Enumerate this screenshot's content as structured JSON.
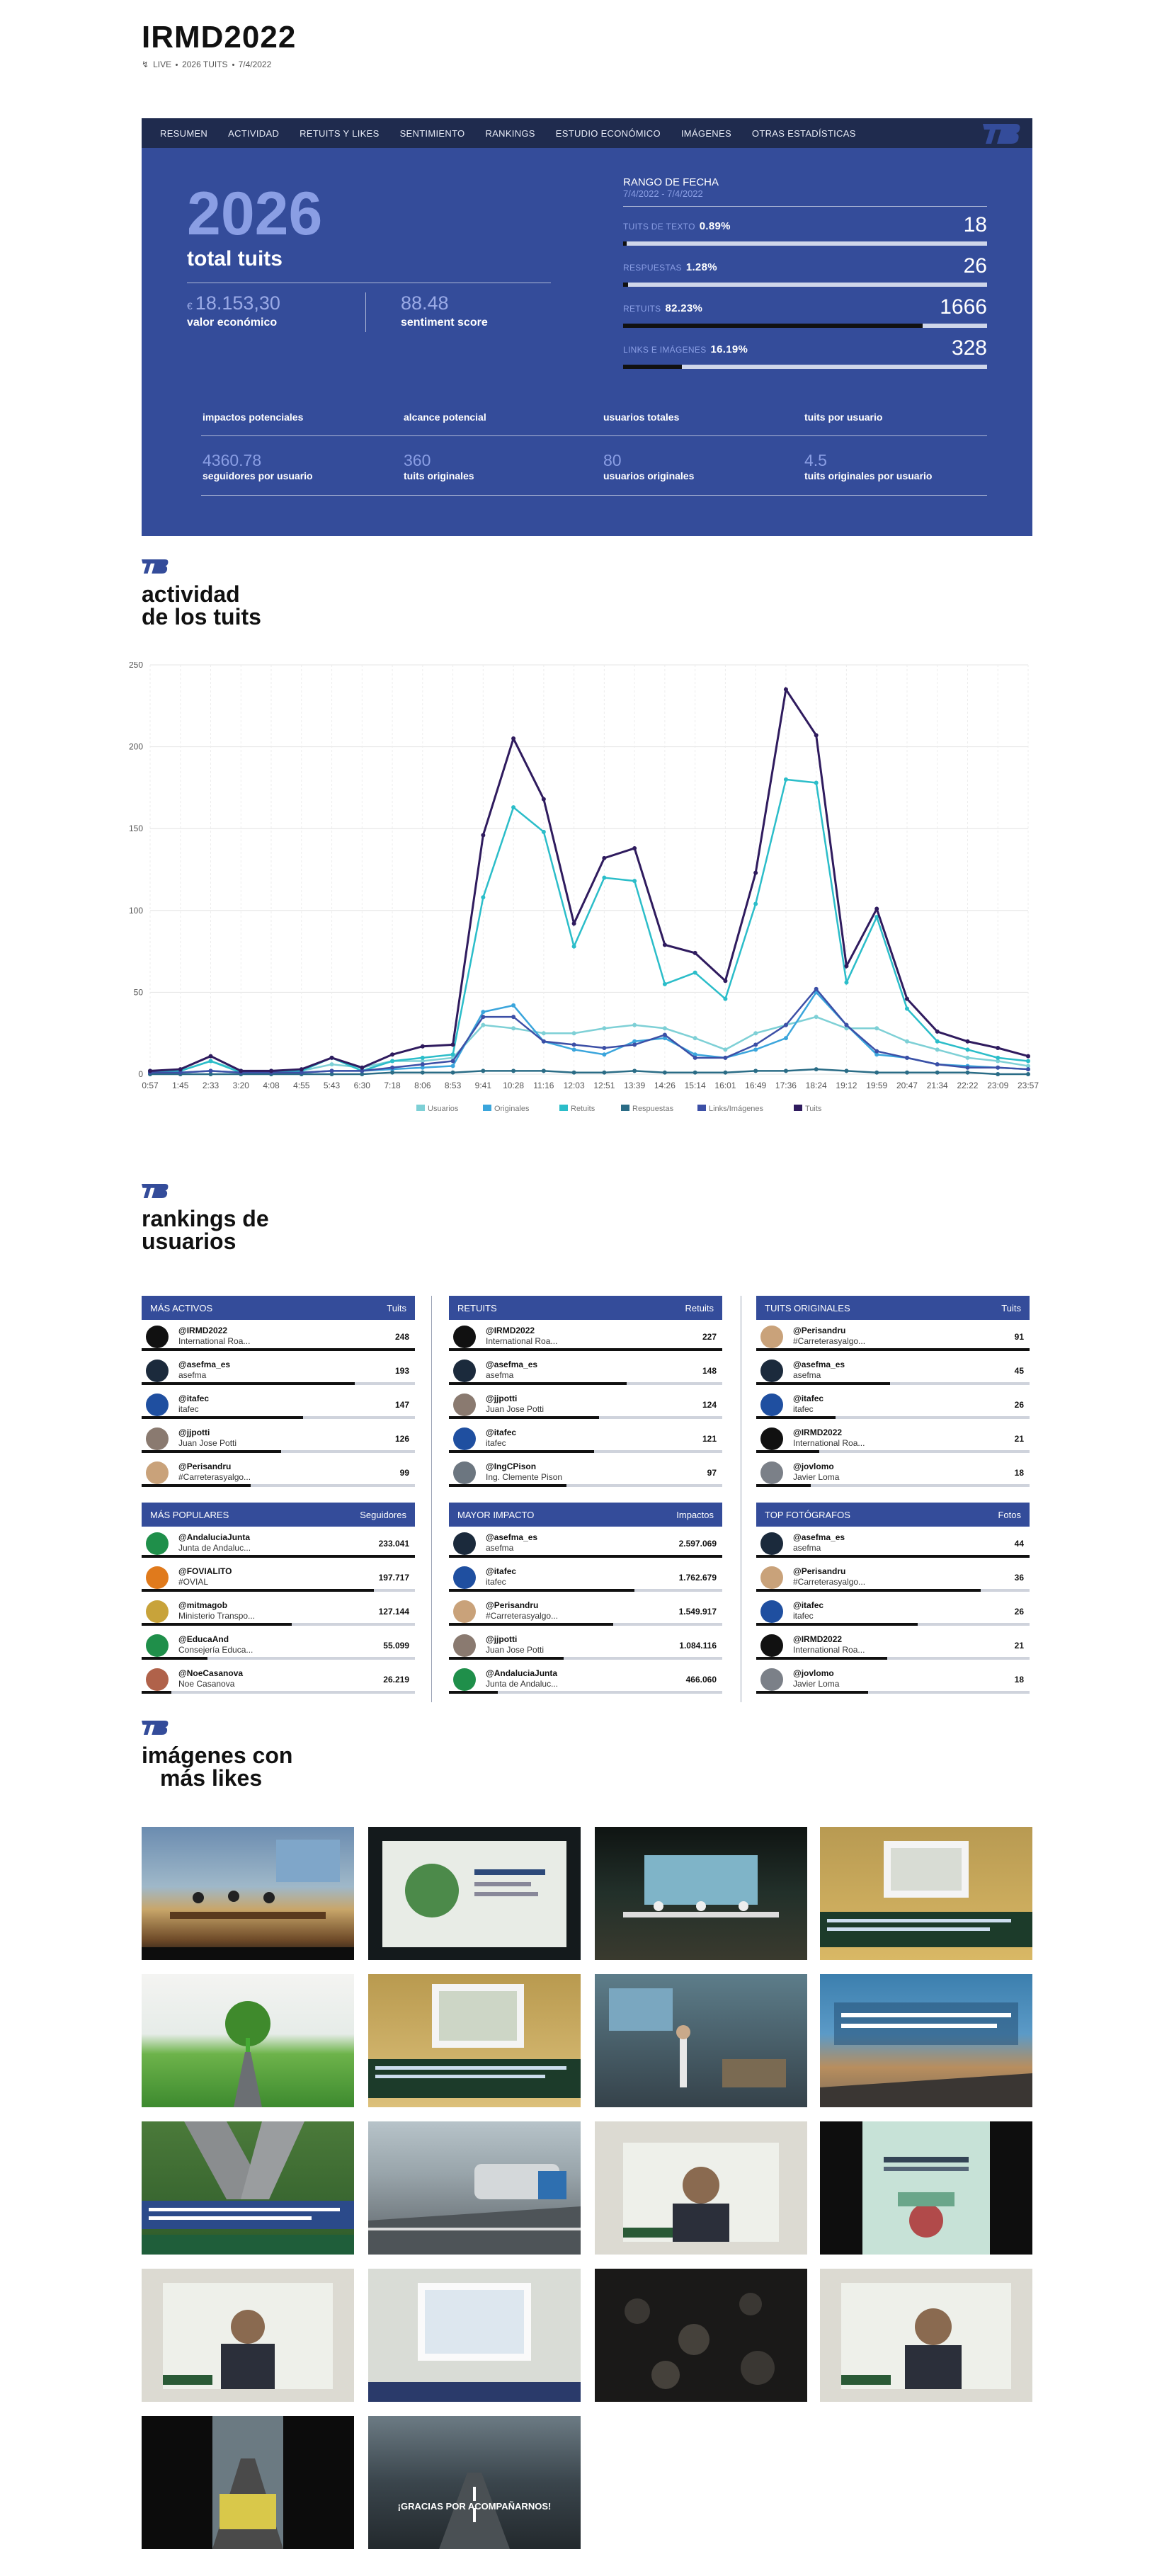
{
  "header": {
    "title": "IRMD2022",
    "live": "LIVE",
    "tuits": "2026 TUITS",
    "date": "7/4/2022"
  },
  "nav": [
    "RESUMEN",
    "ACTIVIDAD",
    "RETUITS Y LIKES",
    "SENTIMIENTO",
    "RANKINGS",
    "ESTUDIO ECONÓMICO",
    "IMÁGENES",
    "OTRAS ESTADÍSTICAS"
  ],
  "summary": {
    "total": "2026",
    "total_label": "total tuits",
    "currency": "€",
    "economic_value": "18.153,30",
    "economic_label": "valor económico",
    "sentiment_value": "88.48",
    "sentiment_label": "sentiment score",
    "range_label": "RANGO DE FECHA",
    "range_value": "7/4/2022 - 7/4/2022",
    "breakdown": [
      {
        "label": "TUITS DE TEXTO",
        "pct": "0.89%",
        "value": "18",
        "fraction": 0.0089
      },
      {
        "label": "RESPUESTAS",
        "pct": "1.28%",
        "value": "26",
        "fraction": 0.0128
      },
      {
        "label": "RETUITS",
        "pct": "82.23%",
        "value": "1666",
        "fraction": 0.8223
      },
      {
        "label": "LINKS E IMÁGENES",
        "pct": "16.19%",
        "value": "328",
        "fraction": 0.1619
      }
    ],
    "metrics_top": [
      "impactos potenciales",
      "alcance potencial",
      "usuarios totales",
      "tuits por usuario"
    ],
    "metrics_bottom": [
      {
        "value": "4360.78",
        "label": "seguidores por usuario"
      },
      {
        "value": "360",
        "label": "tuits originales"
      },
      {
        "value": "80",
        "label": "usuarios originales"
      },
      {
        "value": "4.5",
        "label": "tuits originales por usuario"
      }
    ]
  },
  "activity": {
    "title_1": "actividad",
    "title_2": "de los tuits"
  },
  "chart_data": {
    "type": "line",
    "ylim": [
      0,
      250
    ],
    "yticks": [
      0,
      50,
      100,
      150,
      200,
      250
    ],
    "x": [
      "0:57",
      "1:45",
      "2:33",
      "3:20",
      "4:08",
      "4:55",
      "5:43",
      "6:30",
      "7:18",
      "8:06",
      "8:53",
      "9:41",
      "10:28",
      "11:16",
      "12:03",
      "12:51",
      "13:39",
      "14:26",
      "15:14",
      "16:01",
      "16:49",
      "17:36",
      "18:24",
      "19:12",
      "19:59",
      "20:47",
      "21:34",
      "22:22",
      "23:09",
      "23:57"
    ],
    "grid": true,
    "legend_position": "bottom",
    "series": [
      {
        "name": "Usuarios",
        "color": "#7ed0d6",
        "values": [
          2,
          2,
          8,
          2,
          2,
          2,
          6,
          4,
          8,
          8,
          10,
          30,
          28,
          25,
          25,
          28,
          30,
          28,
          22,
          15,
          25,
          30,
          35,
          28,
          28,
          20,
          15,
          10,
          8,
          5
        ]
      },
      {
        "name": "Originales",
        "color": "#3aa5dc",
        "values": [
          1,
          1,
          2,
          1,
          1,
          1,
          2,
          2,
          3,
          4,
          5,
          38,
          42,
          20,
          15,
          12,
          20,
          22,
          12,
          10,
          15,
          22,
          50,
          30,
          12,
          10,
          6,
          5,
          4,
          3
        ]
      },
      {
        "name": "Retuits",
        "color": "#2bbdc9",
        "values": [
          1,
          2,
          8,
          1,
          1,
          2,
          10,
          2,
          8,
          10,
          12,
          108,
          163,
          148,
          78,
          120,
          118,
          55,
          62,
          46,
          104,
          180,
          178,
          56,
          96,
          40,
          20,
          15,
          10,
          8
        ]
      },
      {
        "name": "Respuestas",
        "color": "#2a6c86",
        "values": [
          0,
          0,
          0,
          0,
          0,
          0,
          0,
          0,
          1,
          1,
          1,
          2,
          2,
          2,
          1,
          1,
          2,
          1,
          1,
          1,
          2,
          2,
          3,
          2,
          1,
          1,
          1,
          1,
          0,
          0
        ]
      },
      {
        "name": "Links/Imágenes",
        "color": "#3c4fa6",
        "values": [
          1,
          1,
          2,
          1,
          1,
          1,
          2,
          2,
          4,
          6,
          8,
          35,
          35,
          20,
          18,
          16,
          18,
          24,
          10,
          10,
          18,
          30,
          52,
          30,
          14,
          10,
          6,
          4,
          4,
          3
        ]
      },
      {
        "name": "Tuits",
        "color": "#2f1b5e",
        "values": [
          2,
          3,
          11,
          2,
          2,
          3,
          10,
          4,
          12,
          17,
          18,
          146,
          205,
          168,
          92,
          132,
          138,
          79,
          74,
          57,
          123,
          235,
          207,
          66,
          101,
          46,
          26,
          20,
          16,
          11
        ]
      }
    ]
  },
  "rankings": {
    "title_1": "rankings de",
    "title_2": "usuarios",
    "tables": [
      {
        "title": "MÁS ACTIVOS",
        "metric": "Tuits",
        "rows": [
          {
            "name": "@IRMD2022",
            "sub": "International Roa...",
            "value": "248",
            "fraction": 1.0,
            "av": "#111111"
          },
          {
            "name": "@asefma_es",
            "sub": "asefma",
            "value": "193",
            "fraction": 0.78,
            "av": "#1b2a3c"
          },
          {
            "name": "@itafec",
            "sub": "itafec",
            "value": "147",
            "fraction": 0.59,
            "av": "#1f4fa0"
          },
          {
            "name": "@jjpotti",
            "sub": "Juan Jose Potti",
            "value": "126",
            "fraction": 0.51,
            "av": "#8a7a70"
          },
          {
            "name": "@Perisandru",
            "sub": "#Carreterasyalgo...",
            "value": "99",
            "fraction": 0.4,
            "av": "#c9a27a"
          }
        ]
      },
      {
        "title": "RETUITS",
        "metric": "Retuits",
        "rows": [
          {
            "name": "@IRMD2022",
            "sub": "International Roa...",
            "value": "227",
            "fraction": 1.0,
            "av": "#111111"
          },
          {
            "name": "@asefma_es",
            "sub": "asefma",
            "value": "148",
            "fraction": 0.65,
            "av": "#1b2a3c"
          },
          {
            "name": "@jjpotti",
            "sub": "Juan Jose Potti",
            "value": "124",
            "fraction": 0.55,
            "av": "#8a7a70"
          },
          {
            "name": "@itafec",
            "sub": "itafec",
            "value": "121",
            "fraction": 0.53,
            "av": "#1f4fa0"
          },
          {
            "name": "@IngCPison",
            "sub": "Ing. Clemente Pison",
            "value": "97",
            "fraction": 0.43,
            "av": "#6c7680"
          }
        ]
      },
      {
        "title": "TUITS ORIGINALES",
        "metric": "Tuits",
        "rows": [
          {
            "name": "@Perisandru",
            "sub": "#Carreterasyalgo...",
            "value": "91",
            "fraction": 1.0,
            "av": "#c9a27a"
          },
          {
            "name": "@asefma_es",
            "sub": "asefma",
            "value": "45",
            "fraction": 0.49,
            "av": "#1b2a3c"
          },
          {
            "name": "@itafec",
            "sub": "itafec",
            "value": "26",
            "fraction": 0.29,
            "av": "#1f4fa0"
          },
          {
            "name": "@IRMD2022",
            "sub": "International Roa...",
            "value": "21",
            "fraction": 0.23,
            "av": "#111111"
          },
          {
            "name": "@jovlomo",
            "sub": "Javier Loma",
            "value": "18",
            "fraction": 0.2,
            "av": "#7b8088"
          }
        ]
      },
      {
        "title": "MÁS POPULARES",
        "metric": "Seguidores",
        "rows": [
          {
            "name": "@AndaluciaJunta",
            "sub": "Junta de Andaluc...",
            "value": "233.041",
            "fraction": 1.0,
            "av": "#1f8f4a"
          },
          {
            "name": "@FOVIALITO",
            "sub": "#OVIAL",
            "value": "197.717",
            "fraction": 0.85,
            "av": "#e07a1c"
          },
          {
            "name": "@mitmagob",
            "sub": "Ministerio Transpo...",
            "value": "127.144",
            "fraction": 0.55,
            "av": "#c8a33a"
          },
          {
            "name": "@EducaAnd",
            "sub": "Consejería Educa...",
            "value": "55.099",
            "fraction": 0.24,
            "av": "#1f8f4a"
          },
          {
            "name": "@NoeCasanova",
            "sub": "Noe Casanova",
            "value": "26.219",
            "fraction": 0.11,
            "av": "#b0624a"
          }
        ]
      },
      {
        "title": "MAYOR IMPACTO",
        "metric": "Impactos",
        "rows": [
          {
            "name": "@asefma_es",
            "sub": "asefma",
            "value": "2.597.069",
            "fraction": 1.0,
            "av": "#1b2a3c"
          },
          {
            "name": "@itafec",
            "sub": "itafec",
            "value": "1.762.679",
            "fraction": 0.68,
            "av": "#1f4fa0"
          },
          {
            "name": "@Perisandru",
            "sub": "#Carreterasyalgo...",
            "value": "1.549.917",
            "fraction": 0.6,
            "av": "#c9a27a"
          },
          {
            "name": "@jjpotti",
            "sub": "Juan Jose Potti",
            "value": "1.084.116",
            "fraction": 0.42,
            "av": "#8a7a70"
          },
          {
            "name": "@AndaluciaJunta",
            "sub": "Junta de Andaluc...",
            "value": "466.060",
            "fraction": 0.18,
            "av": "#1f8f4a"
          }
        ]
      },
      {
        "title": "TOP FOTÓGRAFOS",
        "metric": "Fotos",
        "rows": [
          {
            "name": "@asefma_es",
            "sub": "asefma",
            "value": "44",
            "fraction": 1.0,
            "av": "#1b2a3c"
          },
          {
            "name": "@Perisandru",
            "sub": "#Carreterasyalgo...",
            "value": "36",
            "fraction": 0.82,
            "av": "#c9a27a"
          },
          {
            "name": "@itafec",
            "sub": "itafec",
            "value": "26",
            "fraction": 0.59,
            "av": "#1f4fa0"
          },
          {
            "name": "@IRMD2022",
            "sub": "International Roa...",
            "value": "21",
            "fraction": 0.48,
            "av": "#111111"
          },
          {
            "name": "@jovlomo",
            "sub": "Javier Loma",
            "value": "18",
            "fraction": 0.41,
            "av": "#7b8088"
          }
        ]
      }
    ]
  },
  "images": {
    "title_1": "imágenes con",
    "title_2": "más likes",
    "final_caption": "¡GRACIAS POR ACOMPAÑARNOS!"
  },
  "colors": {
    "panel": "#344c9a",
    "nav": "#1f2b4e",
    "accent_light": "#8a9ee4"
  }
}
